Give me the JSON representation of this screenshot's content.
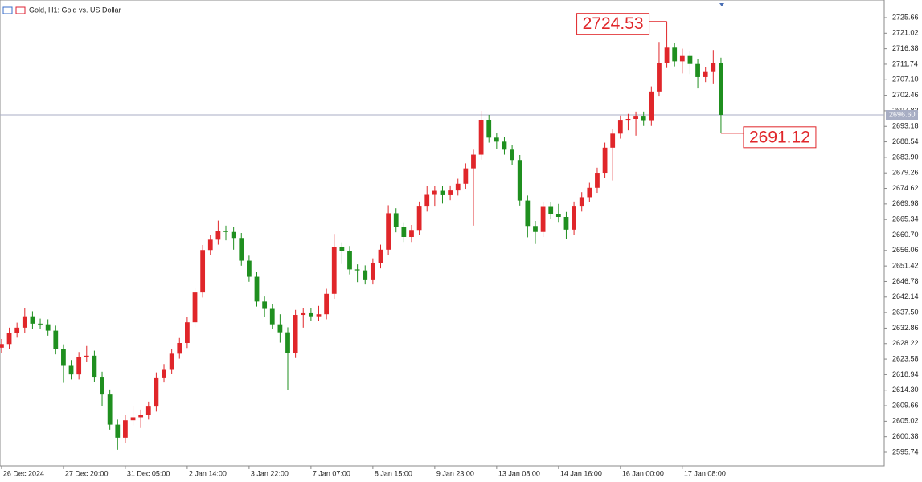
{
  "chart_data": {
    "type": "candlestick",
    "title": "Gold, H1:  Gold vs. US Dollar",
    "up_color": "#e0262a",
    "down_color": "#1f8f1f",
    "grid": false,
    "ylim": [
      2591.66,
      2730.94
    ],
    "yticks": [
      2725.66,
      2721.02,
      2716.38,
      2711.74,
      {
        "value": 2707.1,
        "label": "2707.10"
      },
      2702.46,
      2697.82,
      2693.18,
      2688.54,
      {
        "value": 2683.9,
        "label": "2683.90"
      },
      2679.26,
      2674.62,
      2669.98,
      2665.34,
      {
        "value": 2660.7,
        "label": "2660.70"
      },
      2656.06,
      2651.42,
      2646.78,
      2642.14,
      {
        "value": 2637.5,
        "label": "2637.50"
      },
      2632.86,
      2628.22,
      2623.58,
      2618.94,
      {
        "value": 2614.3,
        "label": "2614.30"
      },
      2609.66,
      2605.02,
      2600.38,
      2595.74
    ],
    "xlim": [
      -0.2,
      114.1
    ],
    "xticks": [
      {
        "value": 0,
        "label": "26 Dec 2024"
      },
      {
        "value": 8,
        "label": "27 Dec 20:00"
      },
      {
        "value": 16,
        "label": "31 Dec 05:00"
      },
      {
        "value": 24,
        "label": "2 Jan 14:00"
      },
      {
        "value": 32,
        "label": "3 Jan 22:00"
      },
      {
        "value": 40,
        "label": "7 Jan 07:00"
      },
      {
        "value": 48,
        "label": "8 Jan 15:00"
      },
      {
        "value": 56,
        "label": "9 Jan 23:00"
      },
      {
        "value": 64,
        "label": "13 Jan 08:00"
      },
      {
        "value": 72,
        "label": "14 Jan 16:00"
      },
      {
        "value": 80,
        "label": "16 Jan 00:00"
      },
      {
        "value": 88,
        "label": "17 Jan 08:00"
      }
    ],
    "current_price": {
      "value": 2696.6,
      "label": "2696.60"
    },
    "annotations": [
      2724.53,
      2691.12
    ],
    "open": [
      2627.0,
      2628.1,
      2631.5,
      2633.0,
      2636.4,
      2634.2,
      2634.0,
      2632.1,
      2626.5,
      2621.8,
      2619.0,
      2624.2,
      2624.6,
      2618.3,
      2613.0,
      2604.0,
      2600.1,
      2605.3,
      2606.2,
      2607.0,
      2609.4,
      2618.1,
      2620.6,
      2625.2,
      2628.4,
      2634.6,
      2643.5,
      2656.2,
      2659.3,
      2662.0,
      2661.6,
      2659.8,
      2653.0,
      2648.2,
      2640.8,
      2638.6,
      2634.0,
      2631.6,
      2625.4,
      2636.8,
      2637.3,
      2636.4,
      2637.0,
      2643.1,
      2657.0,
      2655.9,
      2650.4,
      2650.1,
      2647.4,
      2652.2,
      2656.3,
      2667.2,
      2663.0,
      2660.1,
      2662.2,
      2669.2,
      2672.7,
      2673.9,
      2672.6,
      2674.0,
      2676.0,
      2680.6,
      2684.7,
      2695.1,
      2689.8,
      2688.6,
      2686.2,
      2683.1,
      2671.0,
      2663.4,
      2661.6,
      2669.1,
      2667.0,
      2666.1,
      2662.3,
      2669.2,
      2672.0,
      2674.8,
      2679.3,
      2686.8,
      2691.0,
      2694.9,
      2695.4,
      2696.1,
      2694.8,
      2703.6,
      2712.1,
      2716.7,
      2712.6,
      2714.2,
      2711.8,
      2707.9,
      2709.4,
      2712.2
    ],
    "high": [
      2629.6,
      2633.0,
      2634.5,
      2638.9,
      2637.9,
      2635.7,
      2635.5,
      2633.6,
      2628.0,
      2623.3,
      2625.7,
      2627.5,
      2626.1,
      2619.8,
      2614.5,
      2605.5,
      2606.8,
      2609.5,
      2608.5,
      2610.9,
      2619.6,
      2622.1,
      2626.7,
      2629.9,
      2636.1,
      2645.0,
      2657.7,
      2660.8,
      2665.0,
      2663.5,
      2663.1,
      2661.3,
      2654.5,
      2649.7,
      2642.3,
      2640.1,
      2637.0,
      2633.1,
      2638.3,
      2638.8,
      2638.8,
      2639.5,
      2644.6,
      2661.0,
      2658.5,
      2657.4,
      2651.9,
      2651.6,
      2653.7,
      2657.8,
      2669.6,
      2668.7,
      2664.5,
      2663.7,
      2670.7,
      2675.4,
      2675.4,
      2675.4,
      2675.5,
      2677.5,
      2682.1,
      2686.2,
      2697.8,
      2696.6,
      2691.3,
      2690.1,
      2687.7,
      2684.6,
      2672.5,
      2664.9,
      2670.6,
      2670.6,
      2670.0,
      2667.6,
      2670.7,
      2673.5,
      2676.3,
      2680.8,
      2688.3,
      2692.5,
      2696.4,
      2696.9,
      2697.6,
      2697.6,
      2705.1,
      2718.4,
      2724.53,
      2718.2,
      2716.4,
      2715.7,
      2713.3,
      2710.9,
      2716.0,
      2713.7
    ],
    "low": [
      2625.5,
      2626.6,
      2630.0,
      2631.5,
      2632.7,
      2632.5,
      2630.6,
      2625.0,
      2616.5,
      2617.5,
      2617.5,
      2622.7,
      2616.8,
      2609.5,
      2602.5,
      2596.5,
      2598.6,
      2603.8,
      2603.0,
      2605.5,
      2607.9,
      2616.6,
      2619.1,
      2623.7,
      2626.9,
      2633.1,
      2642.0,
      2654.7,
      2657.8,
      2659.1,
      2656.3,
      2651.5,
      2646.7,
      2639.3,
      2636.1,
      2632.5,
      2628.5,
      2614.3,
      2623.9,
      2633.0,
      2634.9,
      2634.9,
      2635.5,
      2641.6,
      2652.0,
      2648.9,
      2646.6,
      2645.9,
      2645.9,
      2650.7,
      2654.8,
      2661.5,
      2658.6,
      2658.6,
      2660.7,
      2667.7,
      2669.2,
      2670.1,
      2671.1,
      2672.5,
      2674.5,
      2663.5,
      2683.2,
      2688.3,
      2686.5,
      2684.7,
      2681.6,
      2669.5,
      2660.0,
      2658.0,
      2660.1,
      2665.5,
      2664.6,
      2659.5,
      2660.8,
      2667.7,
      2670.5,
      2673.3,
      2677.8,
      2677.0,
      2689.5,
      2692.0,
      2690.4,
      2693.3,
      2693.3,
      2702.1,
      2710.6,
      2711.1,
      2709.0,
      2708.8,
      2704.5,
      2706.4,
      2706.0,
      2691.12
    ],
    "close": [
      2628.1,
      2631.5,
      2633.0,
      2636.4,
      2634.2,
      2634.0,
      2632.1,
      2626.5,
      2621.8,
      2619.0,
      2624.2,
      2624.6,
      2618.3,
      2613.0,
      2604.0,
      2600.1,
      2605.3,
      2606.2,
      2607.0,
      2609.4,
      2618.1,
      2620.6,
      2625.2,
      2628.4,
      2634.6,
      2643.5,
      2656.2,
      2659.3,
      2662.0,
      2661.6,
      2659.8,
      2653.0,
      2648.2,
      2640.8,
      2638.6,
      2634.0,
      2631.6,
      2625.4,
      2636.8,
      2637.3,
      2636.4,
      2637.0,
      2643.1,
      2657.0,
      2655.9,
      2650.4,
      2650.1,
      2647.4,
      2652.2,
      2656.3,
      2667.2,
      2663.0,
      2660.1,
      2662.2,
      2669.2,
      2672.7,
      2673.9,
      2672.6,
      2674.0,
      2676.0,
      2680.6,
      2684.7,
      2695.1,
      2689.8,
      2688.6,
      2686.2,
      2683.1,
      2671.0,
      2663.4,
      2661.6,
      2669.1,
      2667.0,
      2666.1,
      2662.3,
      2669.2,
      2672.0,
      2674.8,
      2679.3,
      2686.8,
      2691.0,
      2694.9,
      2695.4,
      2696.1,
      2694.8,
      2703.6,
      2712.1,
      2716.7,
      2712.6,
      2714.2,
      2711.8,
      2707.9,
      2709.4,
      2712.2,
      2696.6
    ]
  }
}
